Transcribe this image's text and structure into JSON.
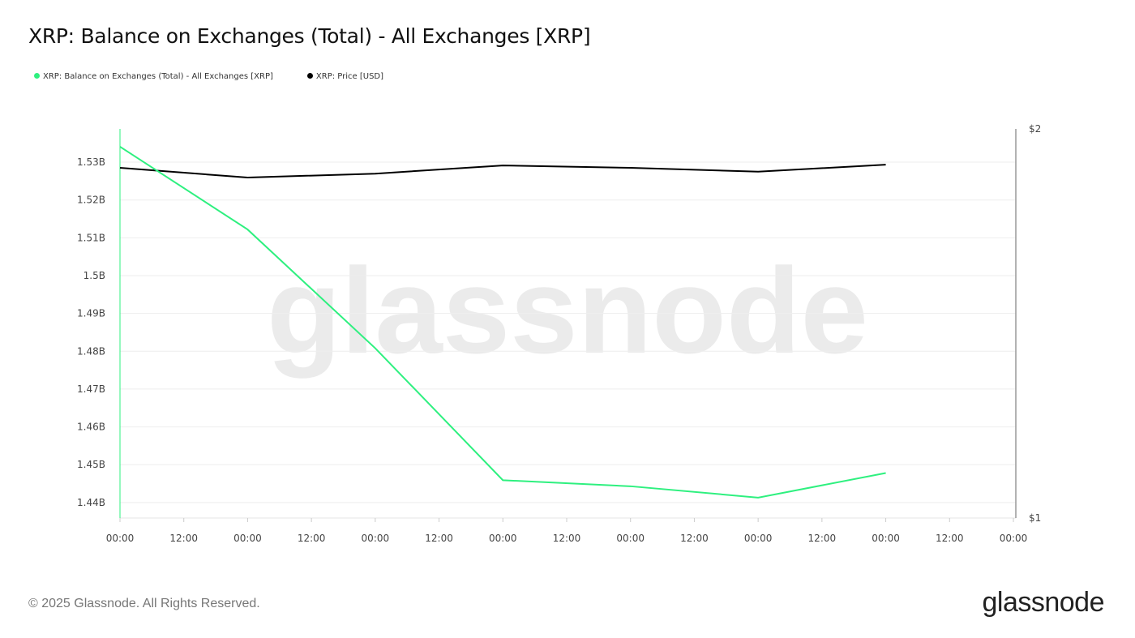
{
  "title": "XRP: Balance on Exchanges (Total) - All Exchanges [XRP]",
  "watermark": "glassnode",
  "footer": "© 2025 Glassnode. All Rights Reserved.",
  "logo": "glassnode",
  "chart_data": {
    "type": "line",
    "title": "XRP: Balance on Exchanges (Total) - All Exchanges [XRP]",
    "x_ticks": [
      "00:00",
      "12:00",
      "00:00",
      "12:00",
      "00:00",
      "12:00",
      "00:00",
      "12:00",
      "00:00",
      "12:00",
      "00:00",
      "12:00",
      "00:00",
      "12:00",
      "00:00"
    ],
    "y_left": {
      "ticks": [
        1.44,
        1.45,
        1.46,
        1.47,
        1.48,
        1.49,
        1.5,
        1.51,
        1.52,
        1.53
      ],
      "tick_labels": [
        "1.44B",
        "1.45B",
        "1.46B",
        "1.47B",
        "1.48B",
        "1.49B",
        "1.5B",
        "1.51B",
        "1.52B",
        "1.53B"
      ],
      "ylim": [
        1.4359,
        1.5388
      ],
      "unit": "B XRP"
    },
    "y_right": {
      "ticks": [
        1,
        2
      ],
      "tick_labels": [
        "$1",
        "$2"
      ],
      "ylim": [
        1,
        2
      ]
    },
    "grid": true,
    "legend_placement": "top-left",
    "series": [
      {
        "name": "XRP: Balance on Exchanges (Total) - All Exchanges [XRP]",
        "axis": "left",
        "color": "#2ef07f",
        "x": [
          "00:00",
          "00:00",
          "00:00",
          "00:00",
          "00:00",
          "00:00",
          "00:00"
        ],
        "values": [
          1.5341,
          1.5122,
          1.4808,
          1.4459,
          1.4443,
          1.4413,
          1.4478
        ]
      },
      {
        "name": "XRP: Price [USD]",
        "axis": "right",
        "color": "#000000",
        "x": [
          "00:00",
          "00:00",
          "00:00",
          "00:00",
          "00:00",
          "00:00",
          "00:00"
        ],
        "values": [
          1.9,
          1.875,
          1.885,
          1.906,
          1.9,
          1.89,
          1.908
        ]
      }
    ]
  }
}
